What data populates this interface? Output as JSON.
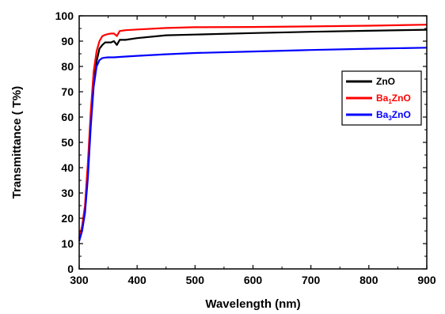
{
  "chart_data": {
    "type": "line",
    "title": "",
    "xlabel": "Wavelength (nm)",
    "ylabel": "Transmittance ( T%)",
    "xlim": [
      300,
      900
    ],
    "ylim": [
      0,
      100
    ],
    "x_ticks": [
      300,
      400,
      500,
      600,
      700,
      800,
      900
    ],
    "y_ticks": [
      0,
      10,
      20,
      30,
      40,
      50,
      60,
      70,
      80,
      90,
      100
    ],
    "grid": false,
    "legend": {
      "position": "right",
      "entries": [
        {
          "prefix": "ZnO",
          "sub": "",
          "suffix": ""
        },
        {
          "prefix": "Ba",
          "sub": "1",
          "suffix": "ZnO"
        },
        {
          "prefix": "Ba",
          "sub": "3",
          "suffix": "ZnO"
        }
      ]
    },
    "series": [
      {
        "name": "ZnO",
        "color": "#000000",
        "x": [
          300,
          305,
          310,
          315,
          320,
          325,
          330,
          335,
          340,
          345,
          350,
          355,
          360,
          365,
          370,
          380,
          400,
          450,
          500,
          600,
          700,
          800,
          900
        ],
        "y": [
          12,
          16,
          23,
          38,
          58,
          74,
          82,
          87,
          88.5,
          89.5,
          89.5,
          89.5,
          90,
          88.5,
          90.5,
          90.5,
          91.2,
          92.3,
          92.6,
          93.2,
          93.7,
          94.1,
          94.5
        ]
      },
      {
        "name": "Ba1ZnO",
        "color": "#ff0000",
        "x": [
          300,
          305,
          310,
          315,
          320,
          325,
          330,
          335,
          340,
          345,
          350,
          355,
          360,
          365,
          370,
          380,
          400,
          450,
          500,
          600,
          700,
          800,
          900
        ],
        "y": [
          12,
          17,
          25,
          42,
          62,
          78,
          86,
          90,
          92,
          92.5,
          92.8,
          93,
          93,
          92,
          94,
          94.3,
          94.6,
          95.2,
          95.5,
          95.6,
          95.8,
          96.1,
          96.5
        ]
      },
      {
        "name": "Ba3ZnO",
        "color": "#0000ff",
        "x": [
          300,
          305,
          310,
          315,
          320,
          325,
          330,
          335,
          340,
          345,
          350,
          360,
          380,
          400,
          450,
          500,
          600,
          700,
          800,
          900
        ],
        "y": [
          11,
          15,
          22,
          36,
          56,
          72,
          80,
          82.5,
          83.3,
          83.5,
          83.6,
          83.6,
          83.9,
          84.2,
          84.8,
          85.3,
          85.9,
          86.5,
          87,
          87.4
        ]
      }
    ]
  }
}
